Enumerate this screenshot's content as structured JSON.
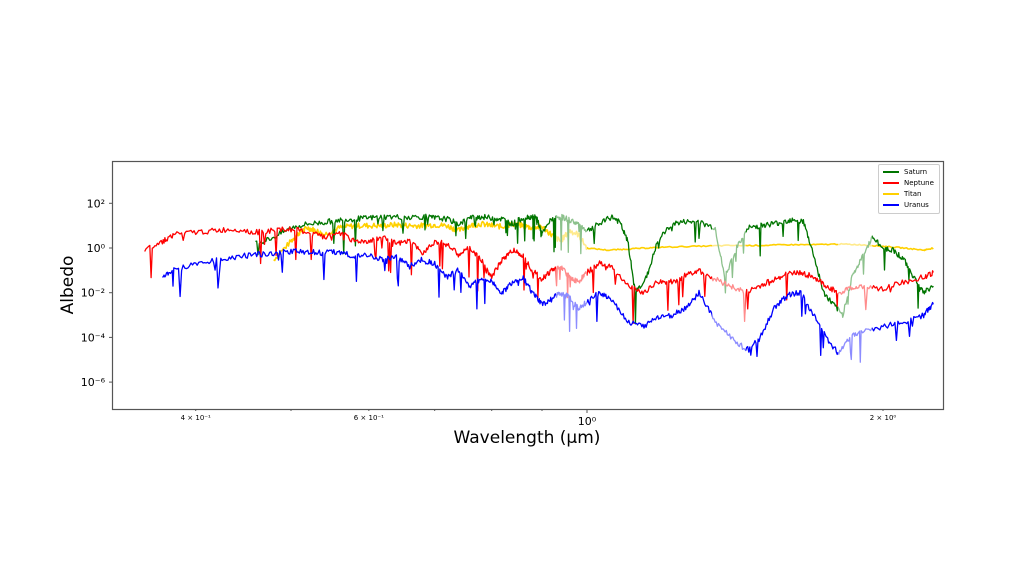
{
  "chart_data": {
    "type": "line",
    "title": "",
    "xlabel": "Wavelength (µm)",
    "ylabel": "Albedo",
    "xscale": "log",
    "yscale": "log",
    "xlim": [
      0.35,
      2.45
    ],
    "ylim": [
      1e-07,
      10000.0
    ],
    "grid": false,
    "legend_position": "upper right",
    "x_ticks": [
      {
        "value": 0.4,
        "label": "4 × 10⁻¹",
        "major": false
      },
      {
        "value": 0.5,
        "label": "",
        "major": false
      },
      {
        "value": 0.6,
        "label": "6 × 10⁻¹",
        "major": false
      },
      {
        "value": 0.7,
        "label": "",
        "major": false
      },
      {
        "value": 0.8,
        "label": "",
        "major": false
      },
      {
        "value": 0.9,
        "label": "",
        "major": false
      },
      {
        "value": 1.0,
        "label": "10⁰",
        "major": true
      },
      {
        "value": 2.0,
        "label": "2 × 10⁰",
        "major": false
      }
    ],
    "y_ticks": [
      {
        "value": 100,
        "label": "10²"
      },
      {
        "value": 1,
        "label": "10⁰"
      },
      {
        "value": 0.01,
        "label": "10⁻²"
      },
      {
        "value": 0.0001,
        "label": "10⁻⁴"
      },
      {
        "value": 1e-06,
        "label": "10⁻⁶"
      }
    ],
    "series": [
      {
        "name": "Saturn",
        "color": "#007500",
        "x": [
          0.46,
          0.48,
          0.5,
          0.52,
          0.54,
          0.56,
          0.58,
          0.6,
          0.62,
          0.65,
          0.68,
          0.7,
          0.72,
          0.74,
          0.76,
          0.78,
          0.8,
          0.82,
          0.84,
          0.86,
          0.88,
          0.89,
          0.9,
          0.92,
          0.94,
          0.96,
          0.98,
          1.0,
          1.03,
          1.06,
          1.08,
          1.1,
          1.12,
          1.15,
          1.18,
          1.22,
          1.26,
          1.3,
          1.35,
          1.38,
          1.42,
          1.46,
          1.5,
          1.54,
          1.58,
          1.62,
          1.66,
          1.7,
          1.74,
          1.78,
          1.82,
          1.86,
          1.9,
          1.95,
          2.0,
          2.05,
          2.1,
          2.15,
          2.2,
          2.25
        ],
        "y": [
          1.5,
          3,
          8,
          12,
          14,
          18,
          20,
          22,
          25,
          24,
          25,
          22,
          20,
          12,
          22,
          25,
          22,
          20,
          12,
          22,
          26,
          20,
          4,
          20,
          25,
          18,
          12,
          6,
          12,
          25,
          14,
          2,
          0.01,
          0.05,
          2,
          12,
          15,
          14,
          8,
          0.05,
          1.0,
          8,
          10,
          12,
          14,
          20,
          15,
          0.5,
          0.01,
          0.003,
          0.001,
          0.05,
          0.3,
          3.0,
          1.0,
          0.8,
          0.3,
          0.05,
          0.01,
          0.02
        ]
      },
      {
        "name": "Neptune",
        "color": "#ff0000",
        "x": [
          0.355,
          0.37,
          0.38,
          0.4,
          0.42,
          0.44,
          0.46,
          0.48,
          0.5,
          0.52,
          0.54,
          0.56,
          0.58,
          0.6,
          0.62,
          0.64,
          0.66,
          0.68,
          0.7,
          0.72,
          0.74,
          0.76,
          0.78,
          0.8,
          0.82,
          0.84,
          0.86,
          0.88,
          0.9,
          0.92,
          0.94,
          0.96,
          0.98,
          1.0,
          1.03,
          1.06,
          1.1,
          1.14,
          1.18,
          1.22,
          1.26,
          1.3,
          1.35,
          1.4,
          1.45,
          1.5,
          1.55,
          1.6,
          1.65,
          1.7,
          1.75,
          1.8,
          1.85,
          1.9,
          2.0,
          2.1,
          2.2,
          2.25
        ],
        "y": [
          0.8,
          2,
          4,
          5,
          6,
          7,
          5,
          6,
          7,
          5,
          3,
          5,
          2,
          2,
          3,
          1.5,
          2,
          0.6,
          2,
          1.5,
          0.5,
          1,
          0.3,
          0.05,
          0.3,
          0.8,
          0.5,
          0.1,
          0.04,
          0.1,
          0.15,
          0.05,
          0.03,
          0.08,
          0.2,
          0.15,
          0.02,
          0.01,
          0.03,
          0.03,
          0.06,
          0.1,
          0.04,
          0.02,
          0.01,
          0.02,
          0.04,
          0.07,
          0.08,
          0.05,
          0.02,
          0.01,
          0.015,
          0.02,
          0.015,
          0.03,
          0.05,
          0.08
        ]
      },
      {
        "name": "Titan",
        "color": "#ffd000",
        "x": [
          0.48,
          0.5,
          0.51,
          0.52,
          0.53,
          0.54,
          0.56,
          0.58,
          0.6,
          0.62,
          0.64,
          0.66,
          0.68,
          0.7,
          0.72,
          0.74,
          0.76,
          0.78,
          0.8,
          0.82,
          0.84,
          0.86,
          0.88,
          0.9,
          0.92,
          0.94,
          0.96,
          0.98,
          1.0,
          1.05,
          1.1,
          1.15,
          1.2,
          1.3,
          1.4,
          1.5,
          1.6,
          1.7,
          1.8,
          1.9,
          2.0,
          2.1,
          2.2,
          2.25
        ],
        "y": [
          0.3,
          2,
          5,
          8,
          6,
          4,
          8,
          10,
          10,
          10,
          11,
          10,
          10,
          11,
          10,
          6,
          10,
          12,
          10,
          9,
          12,
          10,
          8,
          9,
          4,
          2,
          6,
          4,
          1.0,
          0.8,
          0.9,
          1.0,
          1.1,
          1.2,
          1.3,
          1.3,
          1.4,
          1.4,
          1.5,
          1.4,
          1.2,
          1.0,
          0.8,
          1.0
        ]
      },
      {
        "name": "Uranus",
        "color": "#0000ff",
        "x": [
          0.37,
          0.38,
          0.4,
          0.42,
          0.44,
          0.46,
          0.48,
          0.5,
          0.52,
          0.54,
          0.56,
          0.58,
          0.6,
          0.62,
          0.64,
          0.66,
          0.68,
          0.7,
          0.72,
          0.74,
          0.76,
          0.78,
          0.8,
          0.82,
          0.84,
          0.86,
          0.88,
          0.9,
          0.92,
          0.94,
          0.96,
          0.98,
          1.0,
          1.03,
          1.06,
          1.1,
          1.14,
          1.18,
          1.22,
          1.26,
          1.3,
          1.35,
          1.4,
          1.45,
          1.5,
          1.55,
          1.6,
          1.65,
          1.7,
          1.75,
          1.8,
          1.85,
          1.9,
          2.0,
          2.1,
          2.2,
          2.25
        ],
        "y": [
          0.05,
          0.1,
          0.2,
          0.3,
          0.4,
          0.5,
          0.6,
          0.7,
          0.7,
          0.6,
          0.7,
          0.4,
          0.5,
          0.3,
          0.4,
          0.15,
          0.3,
          0.2,
          0.05,
          0.1,
          0.02,
          0.04,
          0.03,
          0.01,
          0.03,
          0.05,
          0.01,
          0.003,
          0.005,
          0.01,
          0.006,
          0.002,
          0.004,
          0.01,
          0.005,
          0.0005,
          0.0003,
          0.0008,
          0.001,
          0.002,
          0.01,
          0.0005,
          0.0001,
          3e-05,
          0.0001,
          0.002,
          0.008,
          0.01,
          0.001,
          0.0001,
          2e-05,
          0.0001,
          0.0002,
          0.0003,
          0.0005,
          0.001,
          0.003
        ]
      }
    ]
  },
  "labels": {
    "xlabel": "Wavelength (µm)",
    "ylabel": "Albedo"
  },
  "legend": [
    {
      "name": "Saturn",
      "color": "#007500"
    },
    {
      "name": "Neptune",
      "color": "#ff0000"
    },
    {
      "name": "Titan",
      "color": "#ffd000"
    },
    {
      "name": "Uranus",
      "color": "#0000ff"
    }
  ]
}
